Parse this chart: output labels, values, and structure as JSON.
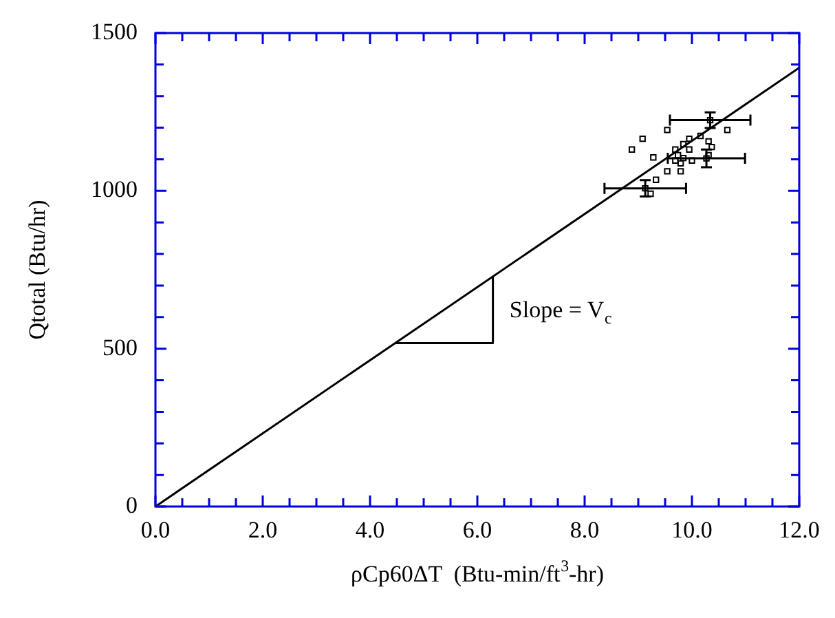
{
  "chart_data": {
    "type": "scatter",
    "xlabel": "ρCp60ΔT  (Btu-min/ft$^{3}$-hr)",
    "ylabel": "Qtotal (Btu/hr)",
    "xlim": [
      0,
      12
    ],
    "ylim": [
      0,
      1500
    ],
    "xticks": [
      {
        "value": 0,
        "label": "0.0"
      },
      {
        "value": 0.5,
        "label": null
      },
      {
        "value": 1,
        "label": null
      },
      {
        "value": 1.5,
        "label": null
      },
      {
        "value": 2,
        "label": "2.0"
      },
      {
        "value": 2.5,
        "label": null
      },
      {
        "value": 3,
        "label": null
      },
      {
        "value": 3.5,
        "label": null
      },
      {
        "value": 4,
        "label": "4.0"
      },
      {
        "value": 4.5,
        "label": null
      },
      {
        "value": 5,
        "label": null
      },
      {
        "value": 5.5,
        "label": null
      },
      {
        "value": 6,
        "label": "6.0"
      },
      {
        "value": 6.5,
        "label": null
      },
      {
        "value": 7,
        "label": null
      },
      {
        "value": 7.5,
        "label": null
      },
      {
        "value": 8,
        "label": "8.0"
      },
      {
        "value": 8.5,
        "label": null
      },
      {
        "value": 9,
        "label": null
      },
      {
        "value": 9.5,
        "label": null
      },
      {
        "value": 10,
        "label": "10.0"
      },
      {
        "value": 10.5,
        "label": null
      },
      {
        "value": 11,
        "label": null
      },
      {
        "value": 11.5,
        "label": null
      },
      {
        "value": 12,
        "label": "12.0"
      }
    ],
    "yticks": [
      0,
      {
        "value": 100,
        "label": null
      },
      {
        "value": 200,
        "label": null
      },
      {
        "value": 300,
        "label": null
      },
      {
        "value": 400,
        "label": null
      },
      500,
      {
        "value": 600,
        "label": null
      },
      {
        "value": 700,
        "label": null
      },
      {
        "value": 800,
        "label": null
      },
      {
        "value": 900,
        "label": null
      },
      1000,
      {
        "value": 1100,
        "label": null
      },
      {
        "value": 1200,
        "label": null
      },
      {
        "value": 1300,
        "label": null
      },
      {
        "value": 1400,
        "label": null
      },
      1500
    ],
    "grid": false,
    "legend": false,
    "marker": "square",
    "annotations": [
      "Slope = V$_{c}$"
    ],
    "series": [
      {
        "color": "#000000",
        "x": [
          9.54,
          9.08,
          8.88,
          9.28,
          9.95,
          10.16,
          10.31,
          10.37,
          10.66,
          9.84,
          9.69,
          9.95,
          9.74,
          9.84,
          10.0,
          9.54,
          9.79,
          9.33,
          9.23,
          10.31,
          9.69,
          9.79,
          10.34,
          10.27,
          9.13
        ],
        "values": [
          1193,
          1165,
          1131,
          1106,
          1165,
          1174,
          1157,
          1139,
          1193,
          1148,
          1131,
          1131,
          1113,
          1104,
          1096,
          1062,
          1062,
          1035,
          991,
          1113,
          1096,
          1087,
          1224,
          1103,
          1008
        ],
        "errors": [
          null,
          null,
          null,
          null,
          null,
          null,
          null,
          null,
          null,
          null,
          null,
          null,
          null,
          null,
          null,
          null,
          null,
          null,
          null,
          null,
          null,
          null,
          25,
          28,
          26
        ],
        "xerrors": [
          null,
          null,
          null,
          null,
          null,
          null,
          null,
          null,
          null,
          null,
          null,
          null,
          null,
          null,
          null,
          null,
          null,
          null,
          null,
          null,
          null,
          null,
          0.75,
          0.72,
          0.76
        ]
      },
      {
        "type": "line",
        "color": "#000000",
        "marker": "none",
        "line_style": "solid",
        "x": [
          0,
          12
        ],
        "values": [
          0,
          1390
        ]
      },
      {
        "type": "line",
        "color": "#000000",
        "marker": "none",
        "line_style": "solid",
        "x": [
          4.47,
          6.29,
          6.29
        ],
        "values": [
          518,
          518,
          729
        ]
      }
    ]
  }
}
